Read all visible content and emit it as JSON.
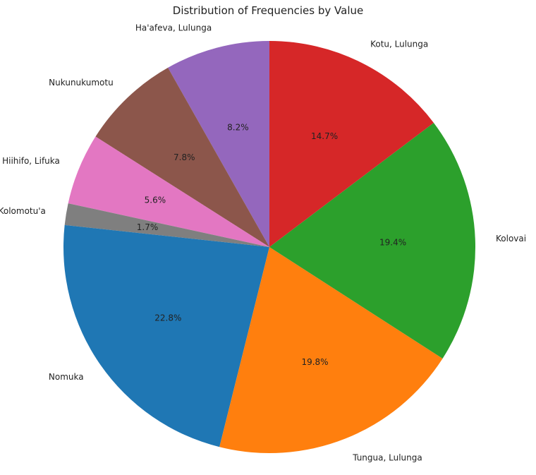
{
  "chart_data": {
    "type": "pie",
    "title": "Distribution of Frequencies by Value",
    "start_angle_deg": 90,
    "direction": "counterclockwise",
    "slices": [
      {
        "label": "Ha'afeva, Lulunga",
        "value": 8.2,
        "pct_label": "8.2%",
        "color": "#9467bd"
      },
      {
        "label": "Nukunukumotu",
        "value": 7.8,
        "pct_label": "7.8%",
        "color": "#8c564b"
      },
      {
        "label": "Hiihifo, Lifuka",
        "value": 5.6,
        "pct_label": "5.6%",
        "color": "#e377c2"
      },
      {
        "label": "Kolomotu'a",
        "value": 1.7,
        "pct_label": "1.7%",
        "color": "#7f7f7f"
      },
      {
        "label": "Nomuka",
        "value": 22.8,
        "pct_label": "22.8%",
        "color": "#1f77b4"
      },
      {
        "label": "Tungua, Lulunga",
        "value": 19.8,
        "pct_label": "19.8%",
        "color": "#ff7f0e"
      },
      {
        "label": "Kolovai",
        "value": 19.4,
        "pct_label": "19.4%",
        "color": "#2ca02c"
      },
      {
        "label": "Kotu, Lulunga",
        "value": 14.7,
        "pct_label": "14.7%",
        "color": "#d62728"
      }
    ]
  }
}
